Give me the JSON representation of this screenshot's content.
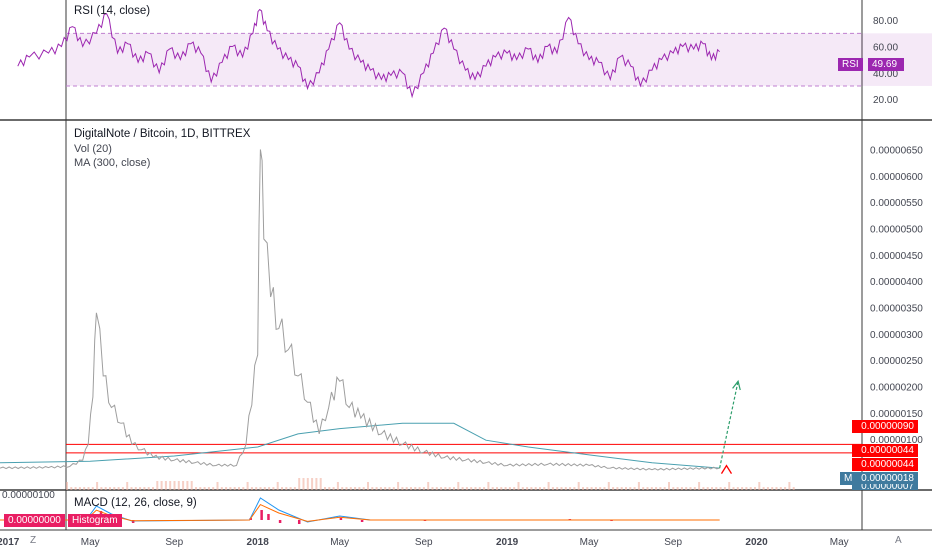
{
  "chart_data": [
    {
      "type": "line",
      "title": "RSI (14, close)",
      "series": [
        {
          "name": "RSI",
          "color": "#9c27b0"
        }
      ],
      "ylim": [
        10,
        95
      ],
      "y_ticks": [
        "80.00",
        "60.00",
        "40.00",
        "20.00"
      ],
      "bands": {
        "upper": 70,
        "lower": 30
      },
      "current_label": "RSI",
      "current_value": "49.69",
      "points": [
        [
          "2017-01-15",
          45
        ],
        [
          "2017-02-01",
          52
        ],
        [
          "2017-03-01",
          55
        ],
        [
          "2017-03-20",
          60
        ],
        [
          "2017-04-05",
          75
        ],
        [
          "2017-04-20",
          60
        ],
        [
          "2017-05-10",
          70
        ],
        [
          "2017-05-25",
          85
        ],
        [
          "2017-06-10",
          55
        ],
        [
          "2017-06-25",
          62
        ],
        [
          "2017-07-10",
          48
        ],
        [
          "2017-07-25",
          55
        ],
        [
          "2017-08-10",
          40
        ],
        [
          "2017-08-25",
          58
        ],
        [
          "2017-09-10",
          50
        ],
        [
          "2017-09-25",
          62
        ],
        [
          "2017-10-10",
          55
        ],
        [
          "2017-10-25",
          33
        ],
        [
          "2017-11-10",
          48
        ],
        [
          "2017-11-25",
          60
        ],
        [
          "2017-12-10",
          52
        ],
        [
          "2017-12-25",
          70
        ],
        [
          "2018-01-04",
          88
        ],
        [
          "2018-01-15",
          72
        ],
        [
          "2018-01-30",
          58
        ],
        [
          "2018-02-15",
          50
        ],
        [
          "2018-03-01",
          45
        ],
        [
          "2018-03-15",
          28
        ],
        [
          "2018-04-01",
          40
        ],
        [
          "2018-04-15",
          58
        ],
        [
          "2018-05-01",
          78
        ],
        [
          "2018-05-15",
          58
        ],
        [
          "2018-06-01",
          48
        ],
        [
          "2018-06-15",
          42
        ],
        [
          "2018-07-01",
          35
        ],
        [
          "2018-07-15",
          38
        ],
        [
          "2018-08-01",
          40
        ],
        [
          "2018-08-15",
          22
        ],
        [
          "2018-09-01",
          40
        ],
        [
          "2018-09-15",
          55
        ],
        [
          "2018-10-01",
          74
        ],
        [
          "2018-10-15",
          58
        ],
        [
          "2018-11-01",
          42
        ],
        [
          "2018-11-15",
          35
        ],
        [
          "2018-12-01",
          45
        ],
        [
          "2018-12-15",
          52
        ],
        [
          "2019-01-01",
          55
        ],
        [
          "2019-01-15",
          50
        ],
        [
          "2019-02-01",
          58
        ],
        [
          "2019-02-15",
          48
        ],
        [
          "2019-03-01",
          60
        ],
        [
          "2019-03-15",
          55
        ],
        [
          "2019-04-01",
          82
        ],
        [
          "2019-04-15",
          62
        ],
        [
          "2019-05-01",
          50
        ],
        [
          "2019-05-15",
          48
        ],
        [
          "2019-06-01",
          35
        ],
        [
          "2019-06-15",
          52
        ],
        [
          "2019-07-01",
          45
        ],
        [
          "2019-07-15",
          30
        ],
        [
          "2019-08-01",
          42
        ],
        [
          "2019-08-15",
          50
        ],
        [
          "2019-09-01",
          55
        ],
        [
          "2019-09-15",
          60
        ],
        [
          "2019-10-01",
          58
        ],
        [
          "2019-10-15",
          62
        ],
        [
          "2019-10-27",
          50
        ],
        [
          "2019-11-08",
          56
        ]
      ]
    },
    {
      "type": "line",
      "title": "DigitalNote / Bitcoin, 1D, BITTREX",
      "indicators": [
        "Vol (20)",
        "MA (300, close)"
      ],
      "y_ticks": [
        "0.00000650",
        "0.00000600",
        "0.00000550",
        "0.00000500",
        "0.00000450",
        "0.00000400",
        "0.00000350",
        "0.00000300",
        "0.00000250",
        "0.00000200",
        "0.00000150",
        "0.00000100"
      ],
      "ylim": [
        3e-07,
        6.7e-06
      ],
      "x_ticks": [
        "2017",
        "May",
        "Sep",
        "2018",
        "May",
        "Sep",
        "2019",
        "May",
        "Sep",
        "2020",
        "May"
      ],
      "x_tick_dates": [
        "2017-01-01",
        "2017-05-01",
        "2017-09-01",
        "2018-01-01",
        "2018-05-01",
        "2018-09-01",
        "2019-01-01",
        "2019-05-01",
        "2019-09-01",
        "2020-01-01",
        "2020-05-01"
      ],
      "series": [
        {
          "name": "DigitalNote / Bitcoin",
          "color": "#9e9e9e"
        },
        {
          "name": "MA",
          "color": "#4aa0b0"
        }
      ],
      "price_points": [
        [
          "2016-12-20",
          4.5e-07
        ],
        [
          "2017-03-01",
          4.6e-07
        ],
        [
          "2017-04-01",
          4.8e-07
        ],
        [
          "2017-04-20",
          6e-07
        ],
        [
          "2017-04-28",
          9e-07
        ],
        [
          "2017-05-05",
          1.8e-06
        ],
        [
          "2017-05-10",
          3.4e-06
        ],
        [
          "2017-05-20",
          2.2e-06
        ],
        [
          "2017-06-01",
          1.6e-06
        ],
        [
          "2017-06-15",
          1.3e-06
        ],
        [
          "2017-07-01",
          9e-07
        ],
        [
          "2017-07-15",
          8e-07
        ],
        [
          "2017-08-01",
          6.6e-07
        ],
        [
          "2017-09-01",
          6e-07
        ],
        [
          "2017-10-01",
          5.5e-07
        ],
        [
          "2017-11-01",
          5e-07
        ],
        [
          "2017-12-01",
          5e-07
        ],
        [
          "2017-12-15",
          9e-07
        ],
        [
          "2018-01-01",
          2.6e-06
        ],
        [
          "2018-01-05",
          6.5e-06
        ],
        [
          "2018-01-10",
          4.8e-06
        ],
        [
          "2018-01-20",
          3.7e-06
        ],
        [
          "2018-02-01",
          3.1e-06
        ],
        [
          "2018-02-15",
          2.7e-06
        ],
        [
          "2018-03-01",
          2.2e-06
        ],
        [
          "2018-03-15",
          1.7e-06
        ],
        [
          "2018-04-01",
          1.1e-06
        ],
        [
          "2018-04-15",
          1.6e-06
        ],
        [
          "2018-05-01",
          2.1e-06
        ],
        [
          "2018-05-15",
          1.6e-06
        ],
        [
          "2018-06-01",
          1.4e-06
        ],
        [
          "2018-07-01",
          1.1e-06
        ],
        [
          "2018-08-01",
          9e-07
        ],
        [
          "2018-09-01",
          7.5e-07
        ],
        [
          "2018-10-01",
          6.5e-07
        ],
        [
          "2018-11-01",
          6e-07
        ],
        [
          "2018-12-01",
          5.5e-07
        ],
        [
          "2019-01-01",
          5e-07
        ],
        [
          "2019-03-01",
          5.2e-07
        ],
        [
          "2019-05-01",
          5e-07
        ],
        [
          "2019-06-01",
          4.5e-07
        ],
        [
          "2019-08-01",
          4.2e-07
        ],
        [
          "2019-11-08",
          4.5e-07
        ]
      ],
      "ma_points": [
        [
          "2016-12-20",
          5.5e-07
        ],
        [
          "2017-05-01",
          5.8e-07
        ],
        [
          "2017-09-01",
          6.8e-07
        ],
        [
          "2018-01-01",
          8.5e-07
        ],
        [
          "2018-03-01",
          1.1e-06
        ],
        [
          "2018-05-01",
          1.2e-06
        ],
        [
          "2018-08-01",
          1.3e-06
        ],
        [
          "2018-10-15",
          1.3e-06
        ],
        [
          "2018-12-01",
          9.8e-07
        ],
        [
          "2019-02-01",
          8.5e-07
        ],
        [
          "2019-05-01",
          7e-07
        ],
        [
          "2019-08-01",
          5.5e-07
        ],
        [
          "2019-11-08",
          4.5e-07
        ]
      ],
      "horizontal_lines": [
        {
          "value": 9e-07,
          "color": "#ff0000",
          "label": "0.00000090"
        },
        {
          "value": 7.4e-07,
          "color": "#ff0000",
          "label": ""
        }
      ],
      "projection_arrow": {
        "from": [
          "2019-11-08",
          4.5e-07
        ],
        "to": [
          "2019-12-05",
          2.1e-06
        ],
        "color": "#2e9e6c"
      },
      "small_arrow_color": "#ff0000",
      "price_labels": [
        {
          "text": "0.00000090",
          "color": "#ff0000"
        },
        {
          "text": "0.00000044",
          "color": "#ff0000"
        },
        {
          "text": "0.00000044",
          "color": "#ff0000"
        },
        {
          "text": "0.00000018",
          "color": "#3f7a9e"
        },
        {
          "text": "0.00000007",
          "color": "#3f7a9e"
        }
      ],
      "ma_badge": "MA"
    },
    {
      "type": "line",
      "title": "MACD (12, 26, close, 9)",
      "y_tick": "0.00000100",
      "current_value": "0.00000000",
      "histogram_label": "Histogram",
      "colors": {
        "histogram": "#e91e63",
        "macd": "#2196f3",
        "signal": "#ff6d00"
      }
    }
  ],
  "corner_left": "Z",
  "corner_right": "A"
}
